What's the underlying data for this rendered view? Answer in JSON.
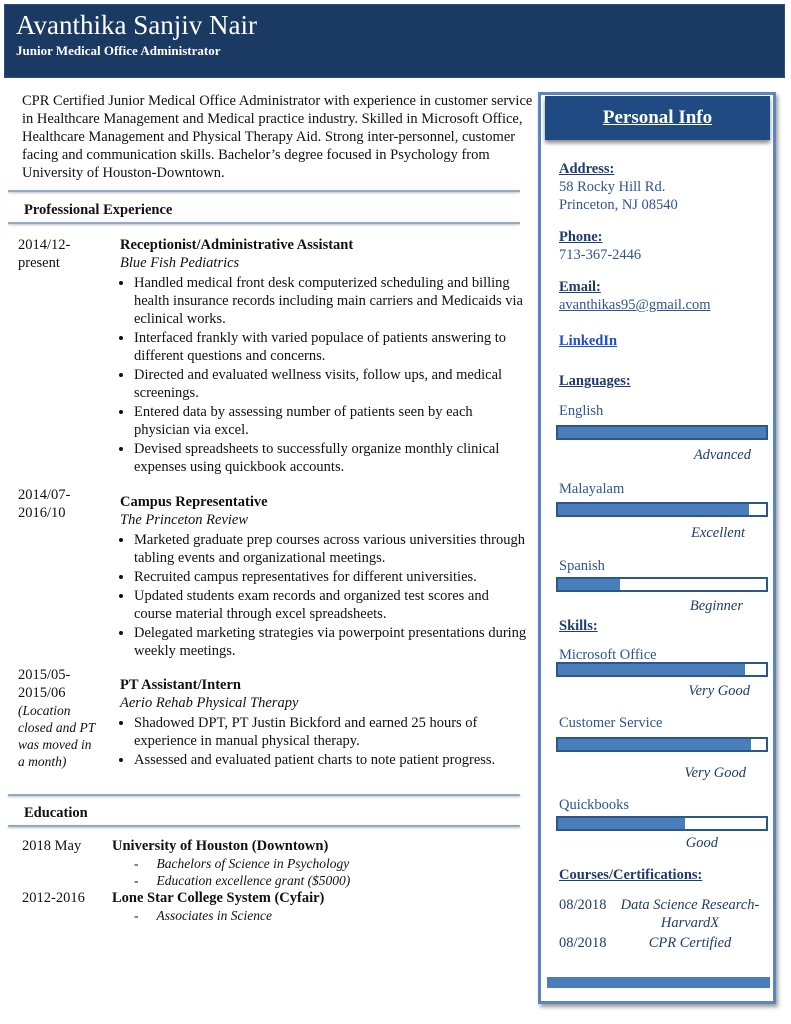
{
  "header": {
    "name": "Avanthika Sanjiv Nair",
    "title": "Junior Medical Office Administrator"
  },
  "summary": "CPR Certified Junior Medical Office Administrator with experience in customer service in Healthcare Management and Medical practice industry. Skilled in Microsoft Office, Healthcare Management and Physical Therapy Aid.  Strong inter-personnel, customer facing and communication skills. Bachelor’s degree focused in Psychology from University of Houston-Downtown.",
  "experience": {
    "heading": "Professional Experience",
    "jobs": [
      {
        "date": "2014/12-present",
        "title": "Receptionist/Administrative Assistant",
        "company": "Blue Fish Pediatrics",
        "bullets": [
          "Handled medical front desk computerized scheduling and billing health insurance records including main carriers and Medicaids via eclinical works.",
          "Interfaced frankly with varied populace of patients answering to different questions and concerns.",
          "Directed and evaluated wellness visits, follow ups, and medical screenings.",
          "Entered data by assessing number of patients seen by each physician via excel.",
          "Devised spreadsheets to successfully organize monthly clinical expenses using quickbook accounts."
        ]
      },
      {
        "date": "2014/07-2016/10",
        "title": "Campus Representative",
        "company": "The Princeton Review",
        "bullets": [
          "Marketed graduate prep courses across various universities through tabling events and organizational meetings.",
          "Recruited campus representatives for different universities.",
          "Updated students exam records and organized test scores and course material through excel spreadsheets.",
          "Delegated marketing strategies via powerpoint presentations during weekly meetings."
        ]
      },
      {
        "date": "2015/05-2015/06",
        "note": "(Location closed and PT was moved in a month)",
        "title": "PT Assistant/Intern",
        "company": "Aerio Rehab Physical Therapy",
        "bullets": [
          "Shadowed DPT, PT Justin Bickford and earned 25 hours of experience in manual physical therapy.",
          "Assessed and evaluated patient charts to note patient progress."
        ]
      }
    ]
  },
  "education": {
    "heading": "Education",
    "items": [
      {
        "date": "2018 May",
        "school": "University of Houston (Downtown)",
        "details": [
          "Bachelors of Science in Psychology",
          "Education excellence grant ($5000)"
        ]
      },
      {
        "date": "2012-2016",
        "school": "Lone Star College System (Cyfair)",
        "details": [
          "Associates in Science"
        ]
      }
    ]
  },
  "sidebar": {
    "heading": "Personal Info",
    "address_label": "Address:",
    "address_lines": [
      "58 Rocky Hill Rd.",
      "Princeton, NJ 08540"
    ],
    "phone_label": "Phone:",
    "phone": "713-367-2446",
    "email_label": "Email:",
    "email": "avanthikas95@gmail.com",
    "linkedin": "LinkedIn",
    "languages_label": "Languages:",
    "languages": [
      {
        "name": "English",
        "level": "Advanced",
        "fill": 1.0
      },
      {
        "name": "Malayalam",
        "level": "Excellent",
        "fill": 0.92
      },
      {
        "name": "Spanish",
        "level": "Beginner",
        "fill": 0.3
      }
    ],
    "skills_label": "Skills:",
    "skills": [
      {
        "name": "Microsoft Office",
        "level": "Very Good",
        "fill": 0.9
      },
      {
        "name": "Customer Service",
        "level": "Very Good",
        "fill": 0.93
      },
      {
        "name": "Quickbooks",
        "level": "Good",
        "fill": 0.61
      }
    ],
    "courses_label": "Courses/Certifications:",
    "courses": [
      {
        "date": "08/2018",
        "name": "Data Science Research- HarvardX"
      },
      {
        "date": "08/2018",
        "name": "CPR Certified"
      }
    ]
  },
  "colors": {
    "header": "#1b3a63",
    "accent": "#4a7ebb",
    "sidebar_text": "#2f5496"
  }
}
